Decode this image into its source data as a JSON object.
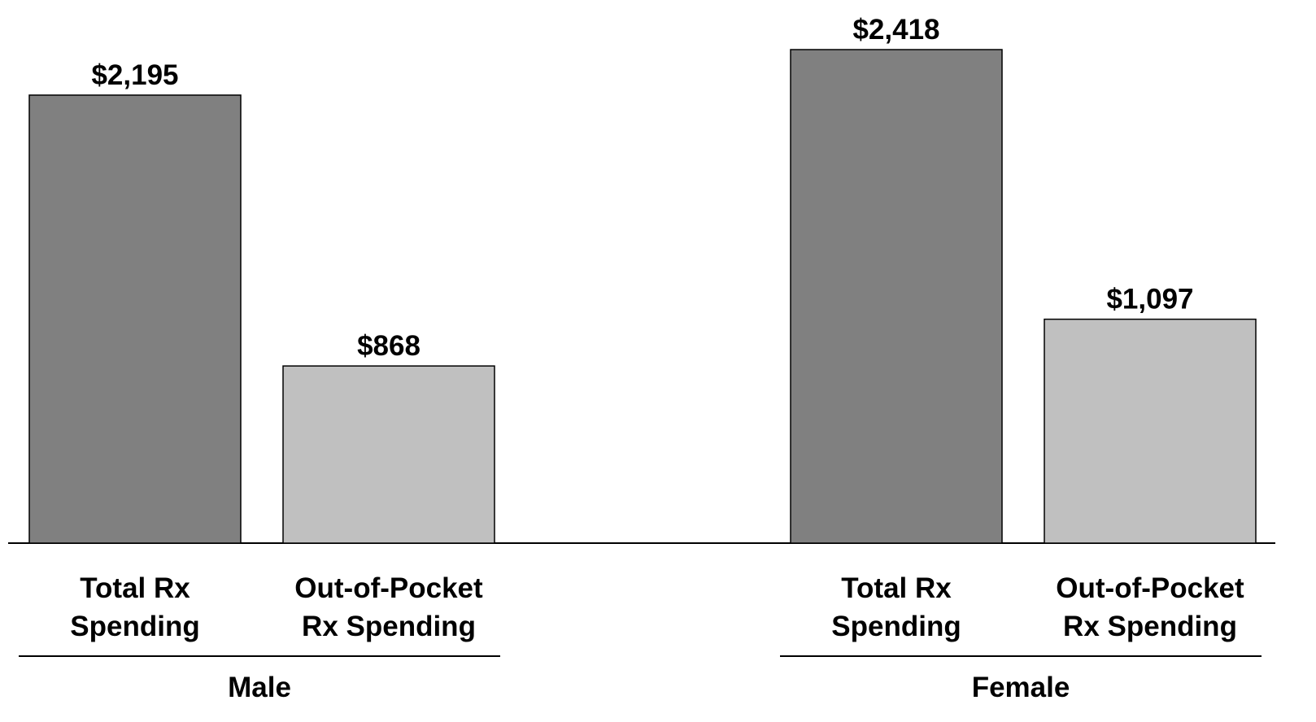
{
  "chart_data": {
    "type": "bar",
    "groups": [
      "Male",
      "Female"
    ],
    "series": [
      {
        "name": "Total Rx\nSpending",
        "color": "#808080",
        "values": [
          2195,
          2418
        ],
        "value_labels": [
          "$2,195",
          "$2,418"
        ]
      },
      {
        "name": "Out-of-Pocket\nRx Spending",
        "color": "#c0c0c0",
        "values": [
          868,
          1097
        ],
        "value_labels": [
          "$868",
          "$1,097"
        ]
      }
    ]
  }
}
